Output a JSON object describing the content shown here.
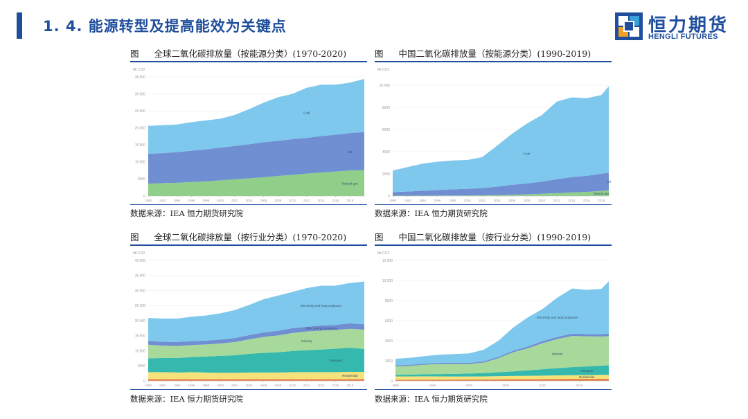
{
  "header": {
    "title": "1. 4. 能源转型及提高能效为关键点"
  },
  "logo": {
    "cn": "恒力期货",
    "en": "HENGLI FUTURES"
  },
  "colors": {
    "brand": "#1f4e9c",
    "coal": "#7dc8ec",
    "oil": "#6f8fd2",
    "gas": "#8fcf8a",
    "electricity": "#7dc8ec",
    "other_energy": "#6f8fd2",
    "industry": "#a6d99a",
    "transport": "#35b8ad",
    "residential": "#f4e27a",
    "other": "#e8834b"
  },
  "panels": [
    {
      "fig": "图",
      "title": "全球二氧化碳排放量（按能源分类）(1970-2020)",
      "source": "数据来源：IEA 恒力期货研究院"
    },
    {
      "fig": "图",
      "title": "中国二氧化碳排放量（按能源分类）(1990-2019)",
      "source": "数据来源：IEA 恒力期货研究院"
    },
    {
      "fig": "图",
      "title": "全球二氧化碳排放量（按行业分类）(1970-2020)",
      "source": "数据来源：IEA 恒力期货研究院"
    },
    {
      "fig": "图",
      "title": "中国二氧化碳排放量（按行业分类）(1990-2019)",
      "source": "数据来源：IEA 恒力期货研究院"
    }
  ],
  "chart_data": [
    {
      "type": "area",
      "stacked": true,
      "unit": "Mt CO2",
      "x": [
        1990,
        1992,
        1994,
        1996,
        1998,
        2000,
        2002,
        2004,
        2006,
        2008,
        2010,
        2012,
        2014,
        2016,
        2018,
        2020
      ],
      "xticks": [
        "1990",
        "1992",
        "1994",
        "1996",
        "1998",
        "2000",
        "2002",
        "2004",
        "2006",
        "2008",
        "2010",
        "2012",
        "2014",
        "2016",
        "2018"
      ],
      "ylim": [
        0,
        35000
      ],
      "yticks": [
        "0",
        "5000",
        "10 000",
        "15 000",
        "20 000",
        "25 000",
        "30 000",
        "35 000"
      ],
      "series": [
        {
          "name": "Natural gas",
          "color_key": "gas",
          "values": [
            3600,
            3800,
            3900,
            4100,
            4300,
            4600,
            4900,
            5200,
            5500,
            5900,
            6200,
            6600,
            6900,
            7200,
            7500,
            7600
          ]
        },
        {
          "name": "Oil",
          "color_key": "oil",
          "values": [
            8800,
            8800,
            9000,
            9200,
            9400,
            9600,
            9800,
            10000,
            10300,
            10300,
            10500,
            10500,
            10700,
            10800,
            11000,
            11200
          ]
        },
        {
          "name": "Coal",
          "color_key": "coal",
          "values": [
            8200,
            8200,
            8100,
            8400,
            8500,
            8500,
            9100,
            10300,
            11600,
            12800,
            13300,
            14700,
            15100,
            14700,
            14800,
            15600
          ]
        }
      ]
    },
    {
      "type": "area",
      "stacked": true,
      "unit": "Mt CO2",
      "x": [
        1990,
        1992,
        1994,
        1996,
        1998,
        2000,
        2002,
        2004,
        2006,
        2008,
        2010,
        2012,
        2014,
        2016,
        2018,
        2019
      ],
      "xticks": [
        "1990",
        "1992",
        "1994",
        "1996",
        "1998",
        "2000",
        "2002",
        "2004",
        "2006",
        "2008",
        "2010",
        "2012",
        "2014",
        "2016",
        "2018"
      ],
      "ylim": [
        0,
        10000
      ],
      "yticks": [
        "0",
        "2000",
        "4000",
        "6000",
        "8000",
        "10 000"
      ],
      "series": [
        {
          "name": "Natural gas",
          "color_key": "gas",
          "values": [
            30,
            30,
            35,
            40,
            45,
            50,
            60,
            80,
            110,
            150,
            200,
            260,
            320,
            370,
            460,
            500
          ]
        },
        {
          "name": "Oil",
          "color_key": "oil",
          "values": [
            320,
            380,
            430,
            500,
            560,
            600,
            650,
            760,
            900,
            980,
            1100,
            1250,
            1380,
            1450,
            1550,
            1600
          ]
        },
        {
          "name": "Coal",
          "color_key": "coal",
          "values": [
            1950,
            2200,
            2450,
            2550,
            2600,
            2600,
            2800,
            3700,
            4600,
            5400,
            6000,
            7000,
            7200,
            7000,
            7100,
            7800
          ]
        }
      ]
    },
    {
      "type": "area",
      "stacked": true,
      "unit": "Mt CO2",
      "x": [
        1990,
        1992,
        1994,
        1996,
        1998,
        2000,
        2002,
        2004,
        2006,
        2008,
        2010,
        2012,
        2014,
        2016,
        2018,
        2020
      ],
      "xticks": [
        "1990",
        "1992",
        "1994",
        "1996",
        "1998",
        "2000",
        "2002",
        "2004",
        "2006",
        "2008",
        "2010",
        "2012",
        "2014",
        "2016",
        "2018"
      ],
      "ylim": [
        0,
        40000
      ],
      "yticks": [
        "0",
        "5000",
        "10 000",
        "15 000",
        "20 000",
        "25 000",
        "30 000",
        "35 000",
        "40 000"
      ],
      "series": [
        {
          "name": "Other",
          "color_key": "other",
          "values": [
            600,
            600,
            600,
            600,
            600,
            600,
            600,
            600,
            600,
            600,
            600,
            600,
            600,
            600,
            600,
            600
          ]
        },
        {
          "name": "Residential",
          "color_key": "residential",
          "values": [
            2300,
            2300,
            2200,
            2300,
            2200,
            2100,
            2100,
            2200,
            2200,
            2200,
            2300,
            2300,
            2300,
            2300,
            2400,
            2400
          ]
        },
        {
          "name": "Transport",
          "color_key": "transport",
          "values": [
            4600,
            4700,
            4800,
            5000,
            5300,
            5600,
            5800,
            6200,
            6500,
            6700,
            7000,
            7300,
            7500,
            7800,
            8000,
            7600
          ]
        },
        {
          "name": "Industry",
          "color_key": "industry",
          "values": [
            4500,
            4100,
            4000,
            4000,
            4000,
            4100,
            4400,
            4800,
            5300,
            5600,
            6000,
            6200,
            6300,
            6200,
            6300,
            6400
          ]
        },
        {
          "name": "Other energy industries",
          "color_key": "other_energy",
          "values": [
            1300,
            1300,
            1300,
            1300,
            1300,
            1300,
            1300,
            1400,
            1500,
            1500,
            1600,
            1600,
            1700,
            1700,
            1800,
            1800
          ]
        },
        {
          "name": "Electricity and heat producers",
          "color_key": "electricity",
          "values": [
            7600,
            7700,
            7800,
            8100,
            8300,
            8700,
            9300,
            10000,
            11000,
            11700,
            12000,
            12800,
            13200,
            13000,
            13400,
            14200
          ]
        }
      ]
    },
    {
      "type": "area",
      "stacked": true,
      "unit": "Mt CO2",
      "x": [
        1990,
        1992,
        1994,
        1996,
        1998,
        2000,
        2002,
        2004,
        2006,
        2008,
        2010,
        2012,
        2014,
        2016,
        2018,
        2019
      ],
      "xticks": [
        "1990",
        "1995",
        "2000",
        "2005",
        "2010",
        "2015"
      ],
      "xtick_values": [
        1990,
        1995,
        2000,
        2005,
        2010,
        2015
      ],
      "ylim": [
        0,
        12000
      ],
      "yticks": [
        "0",
        "2000",
        "4000",
        "6000",
        "8000",
        "10 000",
        "12 000"
      ],
      "series": [
        {
          "name": "Other",
          "color_key": "other",
          "values": [
            120,
            120,
            130,
            130,
            130,
            140,
            150,
            160,
            170,
            180,
            190,
            200,
            210,
            210,
            220,
            220
          ]
        },
        {
          "name": "Residential",
          "color_key": "residential",
          "values": [
            330,
            330,
            330,
            320,
            310,
            300,
            300,
            310,
            320,
            330,
            340,
            350,
            360,
            370,
            380,
            390
          ]
        },
        {
          "name": "Transport",
          "color_key": "transport",
          "values": [
            150,
            170,
            200,
            230,
            260,
            290,
            330,
            390,
            460,
            540,
            630,
            720,
            800,
            860,
            920,
            950
          ]
        },
        {
          "name": "Industry",
          "color_key": "industry",
          "values": [
            850,
            880,
            950,
            1000,
            980,
            950,
            1050,
            1400,
            1900,
            2200,
            2600,
            2900,
            3100,
            3000,
            2900,
            2900
          ]
        },
        {
          "name": "Other energy industries",
          "color_key": "other_energy",
          "values": [
            100,
            100,
            110,
            110,
            110,
            110,
            120,
            140,
            160,
            180,
            200,
            220,
            230,
            230,
            240,
            250
          ]
        },
        {
          "name": "Electricity and heat producers",
          "color_key": "electricity",
          "values": [
            650,
            700,
            750,
            820,
            880,
            950,
            1150,
            1600,
            2300,
            2900,
            3200,
            3900,
            4500,
            4400,
            4500,
            5200
          ]
        }
      ]
    }
  ]
}
